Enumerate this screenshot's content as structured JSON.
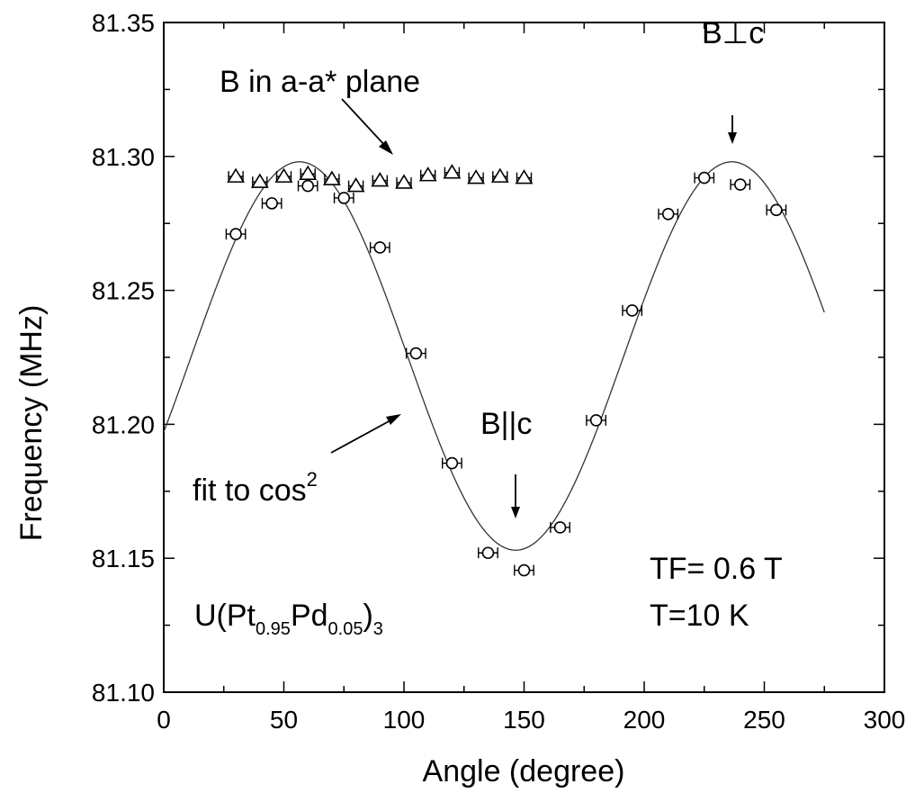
{
  "chart_data": {
    "type": "scatter",
    "xlabel": "Angle (degree)",
    "ylabel": "Frequency (MHz)",
    "xlim": [
      0,
      300
    ],
    "ylim": [
      81.1,
      81.35
    ],
    "x_ticks": [
      "0",
      "50",
      "100",
      "150",
      "200",
      "250",
      "300"
    ],
    "y_ticks": [
      "81.10",
      "81.15",
      "81.20",
      "81.25",
      "81.30",
      "81.35"
    ],
    "grid": false,
    "series": [
      {
        "marker": "triangle",
        "x": [
          30,
          40,
          50,
          60,
          70,
          80,
          90,
          100,
          110,
          120,
          130,
          140,
          150
        ],
        "y": [
          81.2925,
          81.2905,
          81.2925,
          81.2935,
          81.2915,
          81.289,
          81.291,
          81.2902,
          81.293,
          81.294,
          81.292,
          81.2925,
          81.292
        ],
        "xerr": 3
      },
      {
        "marker": "circle",
        "x": [
          30,
          45,
          60,
          75,
          90,
          105,
          120,
          135,
          150,
          165,
          180,
          195,
          210,
          225,
          240,
          255
        ],
        "y": [
          81.271,
          81.2825,
          81.289,
          81.2845,
          81.266,
          81.2265,
          81.1855,
          81.152,
          81.1455,
          81.1615,
          81.2015,
          81.2425,
          81.2785,
          81.292,
          81.2895,
          81.28
        ],
        "xerr": 4
      },
      {
        "type": "line",
        "role": "fit",
        "mean": 81.2255,
        "amplitude": 0.0725,
        "phase_deg": 56.5,
        "x_range": [
          0,
          275
        ]
      }
    ],
    "annotations": [
      {
        "id": "plane",
        "text": "B in a-a* plane"
      },
      {
        "id": "perp",
        "text": "B⊥c"
      },
      {
        "id": "para",
        "text": "B||c"
      },
      {
        "id": "fit",
        "text": "fit to cos",
        "sup": "2"
      },
      {
        "id": "tf",
        "text": "TF= 0.6 T"
      },
      {
        "id": "temp",
        "text": "T=10 K"
      },
      {
        "id": "compound",
        "parts": [
          "U(Pt",
          "0.95",
          "Pd",
          "0.05",
          ")",
          "3"
        ]
      }
    ]
  }
}
